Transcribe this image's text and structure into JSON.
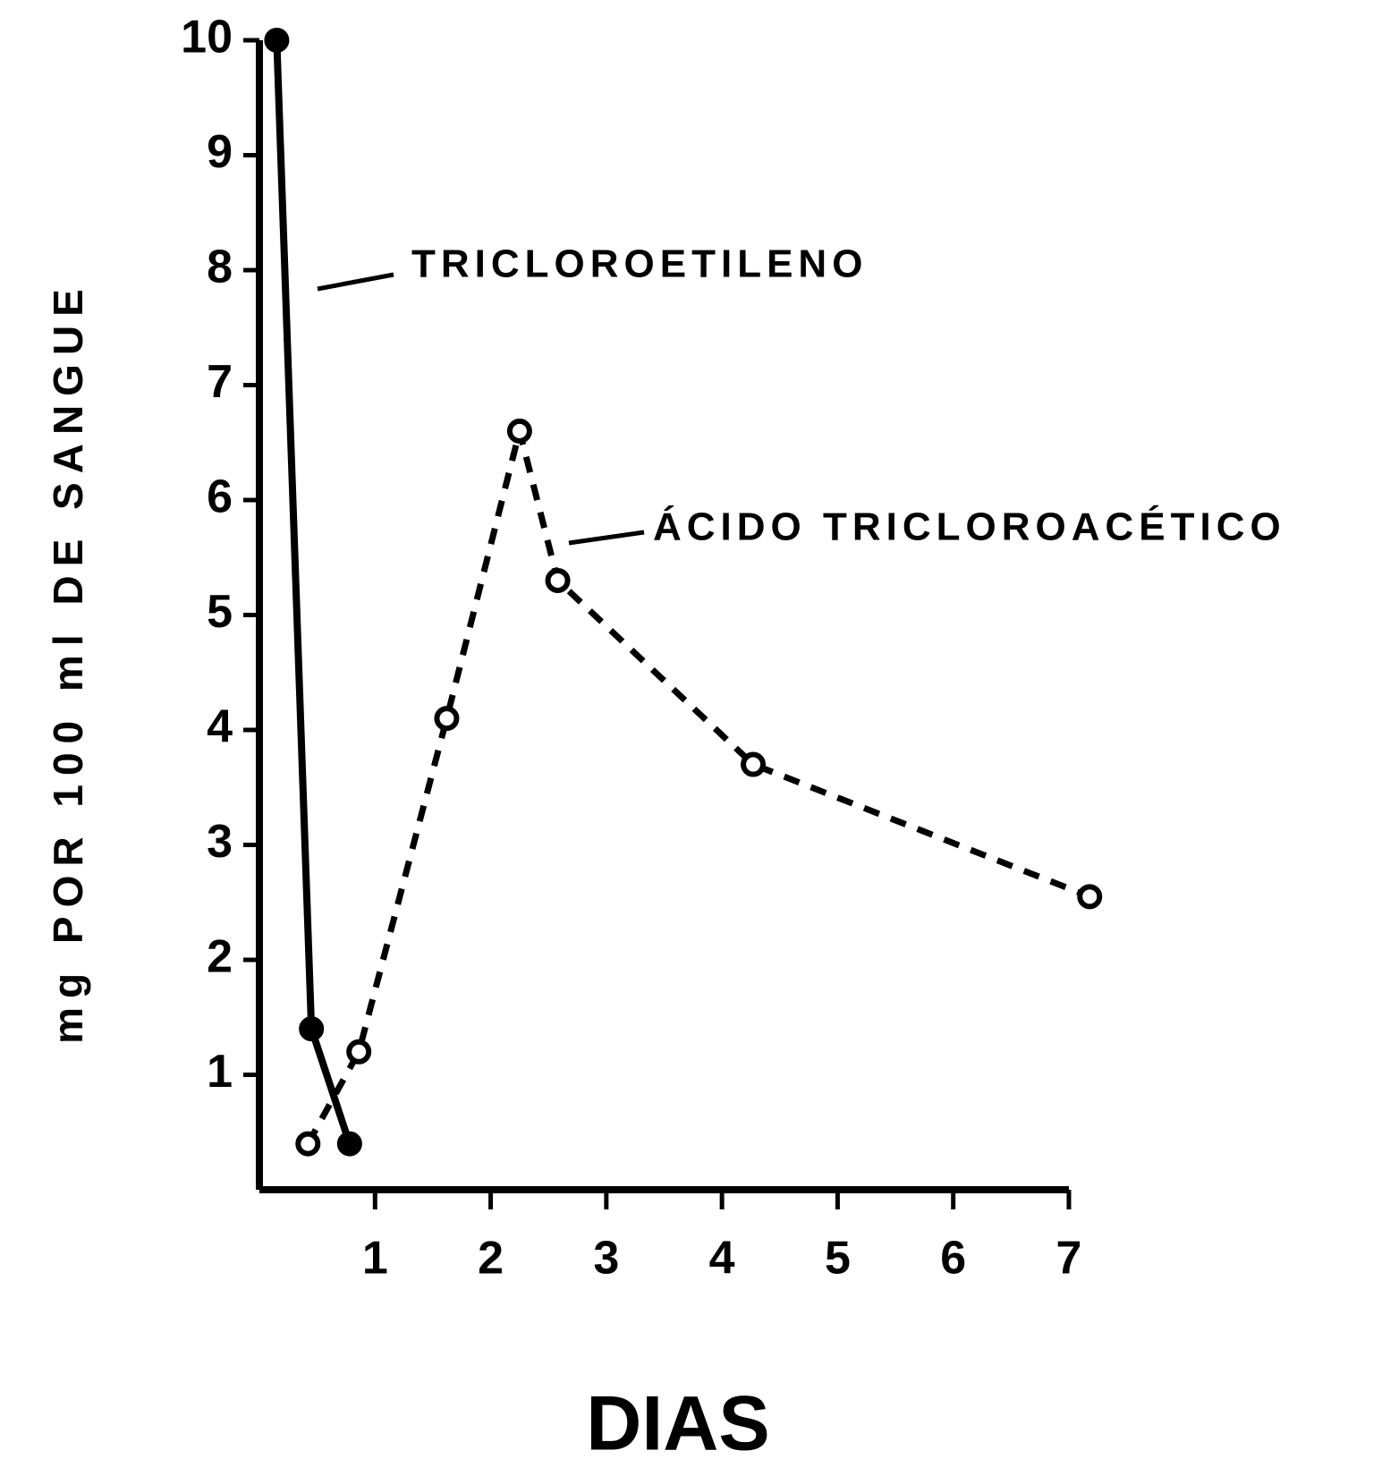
{
  "chart_data": {
    "type": "line",
    "ylabel": "mg POR 100 ml DE SANGUE",
    "xlabel": "DIAS",
    "xlim": [
      0,
      7
    ],
    "xticks": [
      1,
      2,
      3,
      4,
      5,
      6,
      7
    ],
    "ylim": [
      0,
      10
    ],
    "yticks": [
      1,
      2,
      3,
      4,
      5,
      6,
      7,
      8,
      9,
      10
    ],
    "grid": false,
    "series": [
      {
        "name": "TRICLOROETILENO",
        "color": "#000000",
        "linestyle": "solid",
        "marker": "filled",
        "x": [
          0.15,
          0.45,
          0.78
        ],
        "values": [
          10,
          1.4,
          0.4
        ]
      },
      {
        "name": "ÁCIDO TRICLOROACÉTICO",
        "color": "#000000",
        "linestyle": "dashed",
        "marker": "open",
        "x": [
          0.42,
          0.86,
          1.62,
          2.25,
          2.58,
          4.27,
          7.18
        ],
        "values": [
          0.4,
          1.2,
          4.1,
          6.6,
          5.3,
          3.7,
          2.55
        ]
      }
    ]
  }
}
